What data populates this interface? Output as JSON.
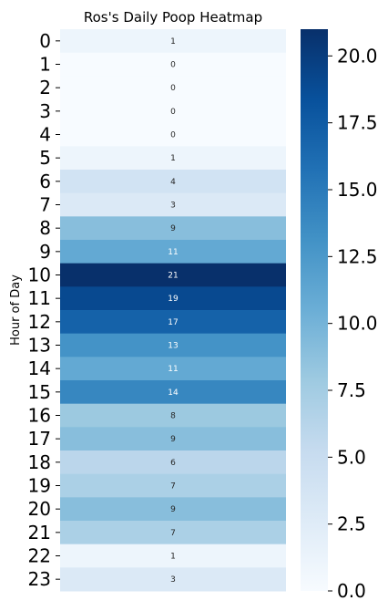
{
  "chart_data": {
    "type": "heatmap",
    "title": "Ros's Daily Poop Heatmap",
    "ylabel": "Hour of Day",
    "xlabel": "",
    "categories": [
      "0",
      "1",
      "2",
      "3",
      "4",
      "5",
      "6",
      "7",
      "8",
      "9",
      "10",
      "11",
      "12",
      "13",
      "14",
      "15",
      "16",
      "17",
      "18",
      "19",
      "20",
      "21",
      "22",
      "23"
    ],
    "values": [
      1,
      0,
      0,
      0,
      0,
      1,
      4,
      3,
      9,
      11,
      21,
      19,
      17,
      13,
      11,
      14,
      8,
      9,
      6,
      7,
      9,
      7,
      1,
      3
    ],
    "cell_labels": [
      "1",
      "0",
      "0",
      "0",
      "0",
      "1",
      "4",
      "3",
      "9",
      "11",
      "21",
      "19",
      "17",
      "13",
      "11",
      "14",
      "8",
      "9",
      "6",
      "7",
      "9",
      "7",
      "1",
      "3"
    ],
    "colorbar": {
      "colormap": "Blues",
      "min": 0,
      "max": 21,
      "ticks": [
        "0.0",
        "2.5",
        "5.0",
        "7.5",
        "10.0",
        "12.5",
        "15.0",
        "17.5",
        "20.0"
      ]
    },
    "grid": false
  }
}
